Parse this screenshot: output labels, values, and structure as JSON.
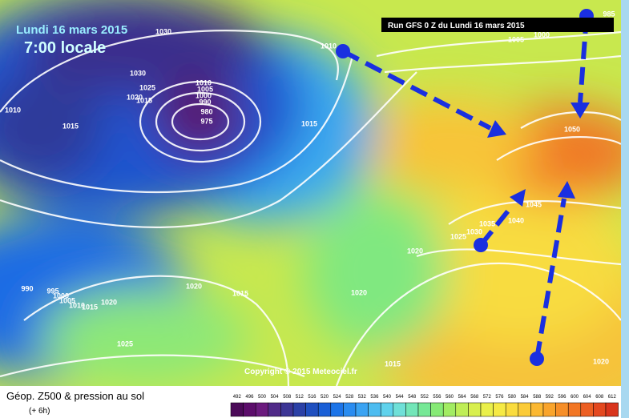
{
  "header": {
    "date": "Lundi 16 mars 2015",
    "time": "7:00 locale",
    "run": "Run GFS 0 Z du Lundi 16 mars 2015",
    "copyright": "Copyright © 2015 Meteociel.fr"
  },
  "footer": {
    "title": "Géop. Z500 & pression au sol",
    "lead": "(+ 6h)"
  },
  "isobars": [
    1030,
    1030,
    1025,
    1020,
    1015,
    1010,
    1005,
    1000,
    990,
    980,
    975,
    1010,
    1015,
    1015,
    1010,
    1005,
    1000,
    985,
    1050,
    1045,
    1040,
    1035,
    1030,
    1025,
    1020,
    1020,
    1020,
    1015,
    990,
    995,
    1000,
    1005,
    1010,
    1015,
    1020,
    1025,
    1015,
    1020
  ],
  "colorbar": {
    "labels": [
      492,
      496,
      500,
      504,
      508,
      512,
      516,
      520,
      524,
      528,
      532,
      536,
      540,
      544,
      548,
      552,
      556,
      560,
      564,
      568,
      572,
      576,
      580,
      584,
      588,
      592,
      596,
      600,
      604,
      608,
      612
    ],
    "colors": [
      "#4b0a58",
      "#5c0d6b",
      "#6b1a7e",
      "#502a88",
      "#3c3595",
      "#2b40a6",
      "#1f4fbf",
      "#1a5fd6",
      "#1c74e8",
      "#2a8cf0",
      "#3aa3f2",
      "#4dbcf0",
      "#5fd2ec",
      "#6fe0d8",
      "#72e6b8",
      "#76e896",
      "#86ea76",
      "#a2ec62",
      "#bfee56",
      "#d8ef4e",
      "#eaf04a",
      "#f6ea44",
      "#fadc3e",
      "#fbcb38",
      "#fbb832",
      "#f9a42c",
      "#f68e28",
      "#f27624",
      "#ec5e22",
      "#e4481f",
      "#d9341c"
    ]
  }
}
